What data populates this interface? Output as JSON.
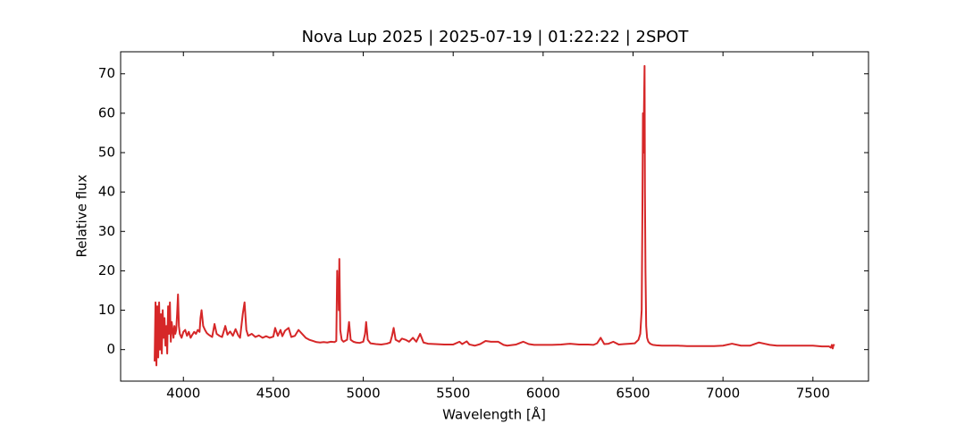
{
  "chart_data": {
    "type": "line",
    "title": "Nova Lup 2025 | 2025-07-19 | 01:22:22 | 2SPOT",
    "x_label": "Wavelength [Å]",
    "y_label": "Relative flux",
    "xlim": [
      3651,
      7809
    ],
    "ylim": [
      -8,
      75.6
    ],
    "xticks": [
      4000,
      4500,
      5000,
      5500,
      6000,
      6500,
      7000,
      7500
    ],
    "yticks": [
      0,
      10,
      20,
      30,
      40,
      50,
      60,
      70
    ],
    "grid": false,
    "series": [
      {
        "color": "#d62728",
        "x": [
          3840,
          3845,
          3850,
          3855,
          3860,
          3865,
          3870,
          3875,
          3880,
          3885,
          3890,
          3895,
          3900,
          3905,
          3910,
          3915,
          3920,
          3925,
          3930,
          3935,
          3940,
          3945,
          3950,
          3955,
          3960,
          3965,
          3970,
          3975,
          3980,
          3990,
          4000,
          4010,
          4020,
          4030,
          4040,
          4050,
          4060,
          4070,
          4080,
          4090,
          4095,
          4101,
          4110,
          4120,
          4130,
          4140,
          4150,
          4160,
          4173,
          4185,
          4200,
          4215,
          4233,
          4245,
          4260,
          4275,
          4290,
          4305,
          4315,
          4330,
          4340,
          4350,
          4360,
          4380,
          4400,
          4420,
          4440,
          4460,
          4480,
          4500,
          4510,
          4525,
          4540,
          4550,
          4565,
          4585,
          4600,
          4620,
          4640,
          4660,
          4680,
          4700,
          4720,
          4740,
          4760,
          4780,
          4800,
          4820,
          4840,
          4850,
          4855,
          4858,
          4861,
          4864,
          4867,
          4872,
          4880,
          4890,
          4910,
          4921,
          4930,
          4945,
          4960,
          4980,
          5000,
          5010,
          5016,
          5025,
          5040,
          5070,
          5100,
          5130,
          5150,
          5160,
          5169,
          5180,
          5200,
          5215,
          5235,
          5255,
          5276,
          5295,
          5316,
          5335,
          5360,
          5400,
          5450,
          5500,
          5535,
          5550,
          5575,
          5590,
          5620,
          5650,
          5680,
          5710,
          5750,
          5780,
          5800,
          5850,
          5890,
          5920,
          5950,
          6000,
          6050,
          6100,
          6150,
          6200,
          6250,
          6280,
          6300,
          6320,
          6340,
          6364,
          6390,
          6420,
          6450,
          6480,
          6510,
          6530,
          6540,
          6548,
          6552,
          6555,
          6558,
          6561,
          6564,
          6566,
          6569,
          6573,
          6578,
          6585,
          6595,
          6610,
          6630,
          6660,
          6700,
          6750,
          6800,
          6850,
          6900,
          6950,
          7000,
          7050,
          7100,
          7150,
          7200,
          7230,
          7260,
          7300,
          7350,
          7400,
          7450,
          7500,
          7550,
          7590,
          7600,
          7605,
          7610,
          7615,
          7620
        ],
        "values": [
          -3,
          12,
          -4,
          11,
          -2,
          12,
          0,
          9,
          -1,
          10,
          3,
          8,
          1,
          6,
          -1,
          11,
          4,
          12,
          2,
          7,
          5,
          3,
          6,
          4,
          5,
          9,
          14,
          6,
          4,
          3,
          4.5,
          5,
          3.5,
          4.5,
          3,
          3.8,
          4.5,
          4,
          5,
          4.5,
          8,
          10,
          6,
          5,
          4.2,
          3.8,
          3.5,
          3.2,
          6.5,
          4,
          3.5,
          3.2,
          6,
          3.8,
          4.6,
          3.5,
          5.2,
          3.6,
          3,
          9,
          12,
          5,
          3.5,
          4,
          3.2,
          3.6,
          3,
          3.4,
          3,
          3.3,
          5.5,
          3.5,
          5,
          3.4,
          4.8,
          5.5,
          3.2,
          3.5,
          5,
          4,
          3,
          2.5,
          2.2,
          1.9,
          1.8,
          1.9,
          1.8,
          2,
          1.9,
          2.2,
          20,
          13,
          17,
          10,
          23,
          5,
          2.5,
          2,
          2.5,
          7,
          2.5,
          2,
          1.8,
          1.7,
          2,
          4,
          7,
          2.5,
          1.6,
          1.4,
          1.3,
          1.5,
          1.8,
          3.5,
          5.5,
          2.5,
          2,
          2.8,
          2.5,
          2,
          3,
          2,
          4,
          1.8,
          1.5,
          1.4,
          1.3,
          1.3,
          2,
          1.4,
          2.1,
          1.3,
          1,
          1.4,
          2.2,
          2,
          2,
          1.2,
          1,
          1.3,
          2,
          1.4,
          1.2,
          1.2,
          1.2,
          1.3,
          1.5,
          1.3,
          1.3,
          1.2,
          1.6,
          3,
          1.4,
          1.5,
          2,
          1.3,
          1.4,
          1.5,
          1.6,
          2.5,
          4,
          10,
          35,
          60,
          50,
          62,
          72,
          40,
          20,
          6,
          3,
          2,
          1.5,
          1.2,
          1.1,
          1,
          1,
          1,
          0.9,
          0.9,
          0.9,
          0.9,
          1,
          1.5,
          1,
          1,
          1.8,
          1.5,
          1.2,
          1,
          1,
          1,
          1,
          1,
          0.8,
          0.8,
          0.5,
          1.2,
          0.3,
          1.2,
          1
        ]
      }
    ]
  }
}
